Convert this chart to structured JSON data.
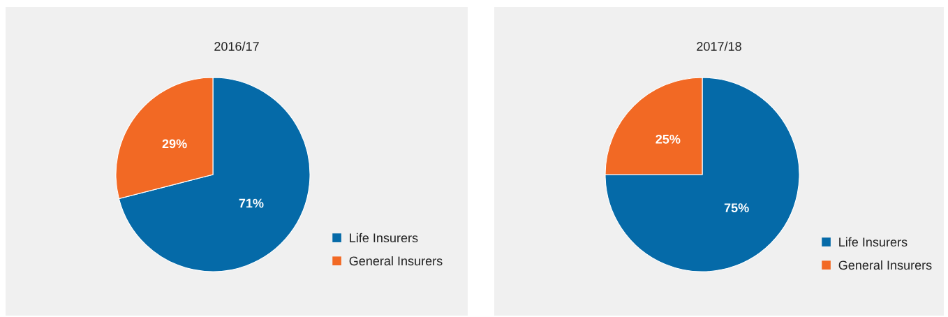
{
  "chart_data": [
    {
      "type": "pie",
      "title": "2016/17",
      "categories": [
        "Life Insurers",
        "General Insurers"
      ],
      "values": [
        71,
        29
      ],
      "colors": [
        "#056aa8",
        "#f26924"
      ],
      "value_labels": [
        "71%",
        "29%"
      ],
      "legend": "bottom right"
    },
    {
      "type": "pie",
      "title": "2017/18",
      "categories": [
        "Life Insurers",
        "General Insurers"
      ],
      "values": [
        75,
        25
      ],
      "colors": [
        "#056aa8",
        "#f26924"
      ],
      "value_labels": [
        "75%",
        "25%"
      ],
      "legend": "bottom right"
    }
  ]
}
